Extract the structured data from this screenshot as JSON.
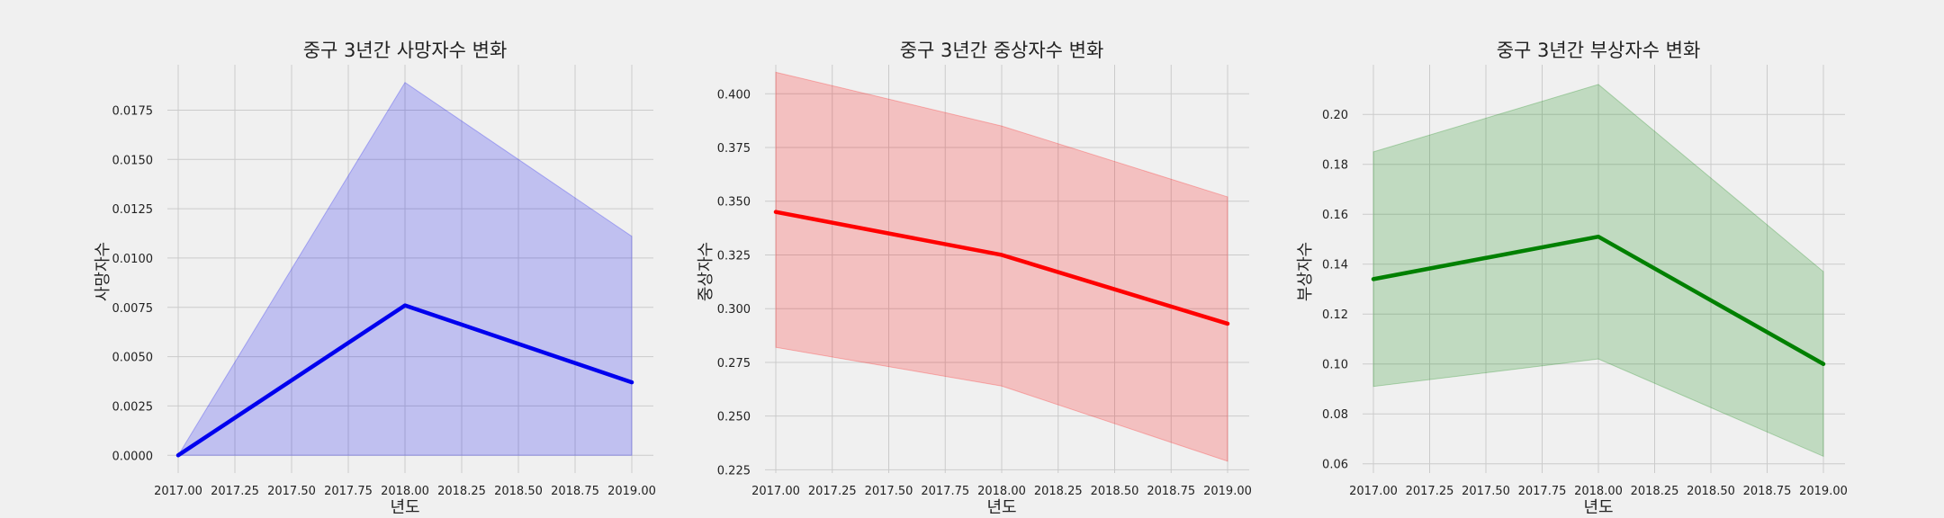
{
  "colors": {
    "background": "#f0f0f0",
    "grid": "#cbcbcb"
  },
  "chart_data": [
    {
      "type": "line",
      "title": "중구 3년간 사망자수 변화",
      "xlabel": "년도",
      "ylabel": "사망자수",
      "x": [
        2017,
        2018,
        2019
      ],
      "series": [
        {
          "values": [
            0.0,
            0.0076,
            0.0037
          ],
          "ci_low": [
            0.0,
            0.0,
            0.0
          ],
          "ci_high": [
            0.0,
            0.0189,
            0.0111
          ]
        }
      ],
      "line_color": "#0000ee",
      "band_color": "#0000ee",
      "xlim": [
        2017.0,
        2019.0
      ],
      "ylim": [
        -0.0009,
        0.0198
      ],
      "xticks": [
        2017.0,
        2017.25,
        2017.5,
        2017.75,
        2018.0,
        2018.25,
        2018.5,
        2018.75,
        2019.0
      ],
      "xtick_labels": [
        "2017.00",
        "2017.25",
        "2017.50",
        "2017.75",
        "2018.00",
        "2018.25",
        "2018.50",
        "2018.75",
        "2019.00"
      ],
      "yticks": [
        0.0,
        0.0025,
        0.005,
        0.0075,
        0.01,
        0.0125,
        0.015,
        0.0175
      ],
      "ytick_labels": [
        "0.0000",
        "0.0025",
        "0.0050",
        "0.0075",
        "0.0100",
        "0.0125",
        "0.0150",
        "0.0175"
      ],
      "grid": true
    },
    {
      "type": "line",
      "title": "중구 3년간 중상자수 변화",
      "xlabel": "년도",
      "ylabel": "중상자수",
      "x": [
        2017,
        2018,
        2019
      ],
      "series": [
        {
          "values": [
            0.345,
            0.325,
            0.293
          ],
          "ci_low": [
            0.282,
            0.264,
            0.229
          ],
          "ci_high": [
            0.41,
            0.385,
            0.352
          ]
        }
      ],
      "line_color": "#ff0000",
      "band_color": "#ff0000",
      "xlim": [
        2017.0,
        2019.0
      ],
      "ylim": [
        0.2235,
        0.4135
      ],
      "xticks": [
        2017.0,
        2017.25,
        2017.5,
        2017.75,
        2018.0,
        2018.25,
        2018.5,
        2018.75,
        2019.0
      ],
      "xtick_labels": [
        "2017.00",
        "2017.25",
        "2017.50",
        "2017.75",
        "2018.00",
        "2018.25",
        "2018.50",
        "2018.75",
        "2019.00"
      ],
      "yticks": [
        0.225,
        0.25,
        0.275,
        0.3,
        0.325,
        0.35,
        0.375,
        0.4
      ],
      "ytick_labels": [
        "0.225",
        "0.250",
        "0.275",
        "0.300",
        "0.325",
        "0.350",
        "0.375",
        "0.400"
      ],
      "grid": true
    },
    {
      "type": "line",
      "title": "중구 3년간 부상자수 변화",
      "xlabel": "년도",
      "ylabel": "부상자수",
      "x": [
        2017,
        2018,
        2019
      ],
      "series": [
        {
          "values": [
            0.134,
            0.151,
            0.1
          ],
          "ci_low": [
            0.091,
            0.102,
            0.063
          ],
          "ci_high": [
            0.185,
            0.212,
            0.137
          ]
        }
      ],
      "line_color": "#008000",
      "band_color": "#008000",
      "xlim": [
        2017.0,
        2019.0
      ],
      "ylim": [
        0.0563,
        0.2199
      ],
      "xticks": [
        2017.0,
        2017.25,
        2017.5,
        2017.75,
        2018.0,
        2018.25,
        2018.5,
        2018.75,
        2019.0
      ],
      "xtick_labels": [
        "2017.00",
        "2017.25",
        "2017.50",
        "2017.75",
        "2018.00",
        "2018.25",
        "2018.50",
        "2018.75",
        "2019.00"
      ],
      "yticks": [
        0.06,
        0.08,
        0.1,
        0.12,
        0.14,
        0.16,
        0.18,
        0.2
      ],
      "ytick_labels": [
        "0.06",
        "0.08",
        "0.10",
        "0.12",
        "0.14",
        "0.16",
        "0.18",
        "0.20"
      ],
      "grid": true
    }
  ]
}
